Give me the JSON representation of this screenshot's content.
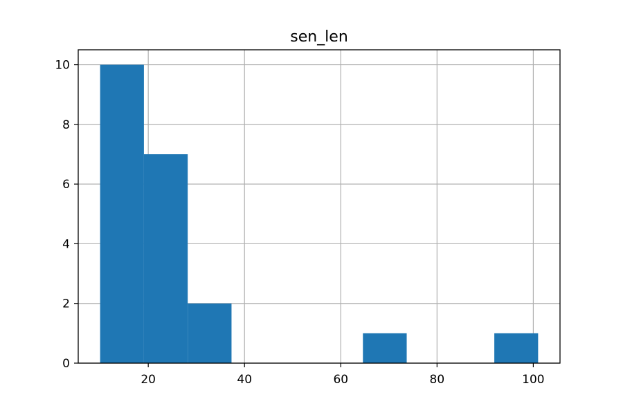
{
  "chart_data": {
    "type": "bar",
    "title": "sen_len",
    "xlabel": "",
    "ylabel": "",
    "xlim": [
      5.45,
      105.55
    ],
    "ylim": [
      0,
      10.5
    ],
    "x_ticks": [
      20,
      40,
      60,
      80,
      100
    ],
    "y_ticks": [
      0,
      2,
      4,
      6,
      8,
      10
    ],
    "grid": true,
    "bar_color": "#1f77b4",
    "bins": [
      {
        "x0": 10,
        "x1": 19.1,
        "count": 10
      },
      {
        "x0": 19.1,
        "x1": 28.2,
        "count": 7
      },
      {
        "x0": 28.2,
        "x1": 37.3,
        "count": 2
      },
      {
        "x0": 37.3,
        "x1": 46.4,
        "count": 0
      },
      {
        "x0": 46.4,
        "x1": 55.5,
        "count": 0
      },
      {
        "x0": 55.5,
        "x1": 64.6,
        "count": 0
      },
      {
        "x0": 64.6,
        "x1": 73.7,
        "count": 1
      },
      {
        "x0": 73.7,
        "x1": 82.8,
        "count": 0
      },
      {
        "x0": 82.8,
        "x1": 91.9,
        "count": 0
      },
      {
        "x0": 91.9,
        "x1": 101,
        "count": 1
      }
    ]
  }
}
